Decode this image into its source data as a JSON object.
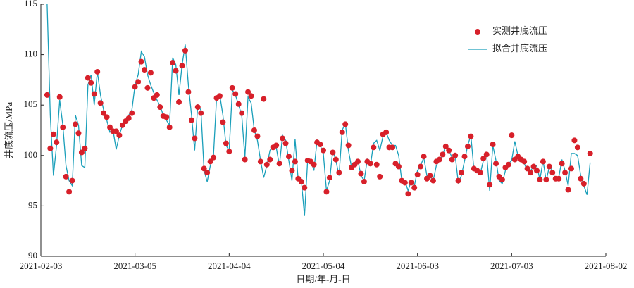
{
  "chart_data": {
    "type": "line",
    "y_label": "井底流压/MPa",
    "x_label": "日期/年-月-日",
    "xlim": [
      "2021-02-03",
      "2021-08-02"
    ],
    "xticks": [
      "2021-02-03",
      "2021-03-05",
      "2021-04-04",
      "2021-05-04",
      "2021-06-03",
      "2021-07-03",
      "2021-08-02"
    ],
    "ylim": [
      90,
      115
    ],
    "yticks": [
      90,
      95,
      100,
      105,
      110,
      115
    ],
    "legend": "upper right",
    "x": [
      "2021-02-05",
      "2021-02-06",
      "2021-02-07",
      "2021-02-08",
      "2021-02-09",
      "2021-02-10",
      "2021-02-11",
      "2021-02-12",
      "2021-02-13",
      "2021-02-14",
      "2021-02-15",
      "2021-02-16",
      "2021-02-17",
      "2021-02-18",
      "2021-02-19",
      "2021-02-20",
      "2021-02-21",
      "2021-02-22",
      "2021-02-23",
      "2021-02-24",
      "2021-02-25",
      "2021-02-26",
      "2021-02-27",
      "2021-02-28",
      "2021-03-01",
      "2021-03-02",
      "2021-03-03",
      "2021-03-04",
      "2021-03-05",
      "2021-03-06",
      "2021-03-07",
      "2021-03-08",
      "2021-03-09",
      "2021-03-10",
      "2021-03-11",
      "2021-03-12",
      "2021-03-13",
      "2021-03-14",
      "2021-03-15",
      "2021-03-16",
      "2021-03-17",
      "2021-03-18",
      "2021-03-19",
      "2021-03-20",
      "2021-03-21",
      "2021-03-22",
      "2021-03-23",
      "2021-03-24",
      "2021-03-25",
      "2021-03-26",
      "2021-03-27",
      "2021-03-28",
      "2021-03-29",
      "2021-03-30",
      "2021-03-31",
      "2021-04-01",
      "2021-04-02",
      "2021-04-03",
      "2021-04-04",
      "2021-04-05",
      "2021-04-06",
      "2021-04-07",
      "2021-04-08",
      "2021-04-09",
      "2021-04-10",
      "2021-04-11",
      "2021-04-12",
      "2021-04-13",
      "2021-04-14",
      "2021-04-15",
      "2021-04-16",
      "2021-04-17",
      "2021-04-18",
      "2021-04-19",
      "2021-04-20",
      "2021-04-21",
      "2021-04-22",
      "2021-04-23",
      "2021-04-24",
      "2021-04-25",
      "2021-04-26",
      "2021-04-27",
      "2021-04-28",
      "2021-04-29",
      "2021-04-30",
      "2021-05-01",
      "2021-05-02",
      "2021-05-03",
      "2021-05-04",
      "2021-05-05",
      "2021-05-06",
      "2021-05-07",
      "2021-05-08",
      "2021-05-09",
      "2021-05-10",
      "2021-05-11",
      "2021-05-12",
      "2021-05-13",
      "2021-05-14",
      "2021-05-15",
      "2021-05-16",
      "2021-05-17",
      "2021-05-18",
      "2021-05-19",
      "2021-05-20",
      "2021-05-21",
      "2021-05-22",
      "2021-05-23",
      "2021-05-24",
      "2021-05-25",
      "2021-05-26",
      "2021-05-27",
      "2021-05-28",
      "2021-05-29",
      "2021-05-30",
      "2021-05-31",
      "2021-06-01",
      "2021-06-02",
      "2021-06-03",
      "2021-06-04",
      "2021-06-05",
      "2021-06-06",
      "2021-06-07",
      "2021-06-08",
      "2021-06-09",
      "2021-06-10",
      "2021-06-11",
      "2021-06-12",
      "2021-06-13",
      "2021-06-14",
      "2021-06-15",
      "2021-06-16",
      "2021-06-17",
      "2021-06-18",
      "2021-06-19",
      "2021-06-20",
      "2021-06-21",
      "2021-06-22",
      "2021-06-23",
      "2021-06-24",
      "2021-06-25",
      "2021-06-26",
      "2021-06-27",
      "2021-06-28",
      "2021-06-29",
      "2021-06-30",
      "2021-07-01",
      "2021-07-02",
      "2021-07-03",
      "2021-07-04",
      "2021-07-05",
      "2021-07-06",
      "2021-07-07",
      "2021-07-08",
      "2021-07-09",
      "2021-07-10",
      "2021-07-11",
      "2021-07-12",
      "2021-07-13",
      "2021-07-14",
      "2021-07-15",
      "2021-07-16",
      "2021-07-17",
      "2021-07-18",
      "2021-07-19",
      "2021-07-20",
      "2021-07-21",
      "2021-07-22",
      "2021-07-23",
      "2021-07-24",
      "2021-07-25",
      "2021-07-26",
      "2021-07-27",
      "2021-07-28"
    ],
    "series": [
      {
        "name": "实测井底流压",
        "type": "scatter",
        "color": "#d7202a",
        "values": [
          106.0,
          100.7,
          102.1,
          101.3,
          105.8,
          102.8,
          97.9,
          96.4,
          97.5,
          103.1,
          102.2,
          100.3,
          100.7,
          107.7,
          107.2,
          106.1,
          108.3,
          105.2,
          104.2,
          103.8,
          102.8,
          102.4,
          102.4,
          102.0,
          103.0,
          103.4,
          103.7,
          104.2,
          106.8,
          107.3,
          109.3,
          108.5,
          106.7,
          108.2,
          105.7,
          106.0,
          104.8,
          103.9,
          103.8,
          102.8,
          109.2,
          108.4,
          105.3,
          108.9,
          110.4,
          106.3,
          103.5,
          101.7,
          104.8,
          104.2,
          98.7,
          98.3,
          99.4,
          99.8,
          105.7,
          105.9,
          103.3,
          101.2,
          100.4,
          106.7,
          106.1,
          105.1,
          104.2,
          99.6,
          106.3,
          105.9,
          102.5,
          101.9,
          99.4,
          105.6,
          99.1,
          99.6,
          100.8,
          101.0,
          99.2,
          101.7,
          101.2,
          99.9,
          98.5,
          99.4,
          97.7,
          97.4,
          96.8,
          99.5,
          99.4,
          99.1,
          101.3,
          101.1,
          100.5,
          96.4,
          97.8,
          100.3,
          99.6,
          98.3,
          102.3,
          103.1,
          101.0,
          98.8,
          99.1,
          99.4,
          98.2,
          97.4,
          99.4,
          99.2,
          100.8,
          99.1,
          97.9,
          102.1,
          102.3,
          100.8,
          100.8,
          99.2,
          98.9,
          97.5,
          97.3,
          96.2,
          97.3,
          96.8,
          98.1,
          98.9,
          99.9,
          97.7,
          98.0,
          97.5,
          99.4,
          99.6,
          100.1,
          100.9,
          100.5,
          99.6,
          100.0,
          97.5,
          98.3,
          99.9,
          100.9,
          101.9,
          98.7,
          98.5,
          98.3,
          99.7,
          100.1,
          97.1,
          101.1,
          99.2,
          97.9,
          97.6,
          98.8,
          99.1,
          102.0,
          99.6,
          99.9,
          99.6,
          99.4,
          98.7,
          98.3,
          98.9,
          98.5,
          97.6,
          99.4,
          97.6,
          98.9,
          98.3,
          97.7,
          97.7,
          99.2,
          98.3,
          96.6,
          98.7,
          101.5,
          100.8,
          97.7,
          97.2,
          null,
          100.2
        ]
      },
      {
        "name": "拟合井底流压",
        "type": "line",
        "color": "#1a9fba",
        "values": [
          115,
          104,
          98,
          101,
          105.5,
          103,
          99,
          97.5,
          97,
          104,
          103,
          99,
          98.8,
          107,
          108,
          105,
          108.3,
          106,
          104.5,
          103.5,
          102.3,
          102.5,
          100.6,
          102,
          103,
          103.5,
          104,
          104.5,
          107,
          108,
          110.3,
          109.8,
          108,
          107,
          106.2,
          105.5,
          104.9,
          104,
          103.5,
          103,
          109.7,
          109,
          106,
          109,
          111,
          107,
          104,
          100.5,
          105,
          104.5,
          98.5,
          97.4,
          99,
          100,
          105.8,
          106,
          104,
          101,
          100.5,
          106.5,
          106,
          105,
          104,
          99.8,
          105.8,
          105.2,
          102.5,
          101.5,
          99.5,
          97.8,
          99,
          100.5,
          101,
          100.8,
          99,
          102,
          101.5,
          99.5,
          97.5,
          101.6,
          97.5,
          97.5,
          94,
          99.5,
          99.5,
          98.5,
          101.5,
          101,
          100.2,
          96.5,
          97.5,
          100.5,
          99.5,
          98,
          102.5,
          103.2,
          100.5,
          98.8,
          99,
          99.5,
          98,
          97.5,
          99.6,
          99,
          101.2,
          101.5,
          100.5,
          101.9,
          102.3,
          101.5,
          101,
          101,
          100,
          97.5,
          97.5,
          96.5,
          97.5,
          97,
          98.5,
          99,
          99.8,
          98,
          98,
          97.5,
          99,
          99.5,
          100,
          101,
          100.5,
          99.8,
          100,
          97.3,
          98,
          99.5,
          101,
          102,
          98.5,
          98.6,
          98.2,
          99.5,
          100.2,
          96.5,
          101,
          99.5,
          97.5,
          97.2,
          98.5,
          99.2,
          99.5,
          101.4,
          100,
          99.8,
          99.2,
          98.5,
          98.5,
          98.9,
          99,
          97.6,
          99.5,
          97.5,
          98.9,
          98.5,
          97.5,
          97.8,
          99.6,
          98.5,
          97,
          100.2,
          100.2,
          100,
          98,
          97,
          96.1,
          99.3
        ]
      }
    ]
  }
}
